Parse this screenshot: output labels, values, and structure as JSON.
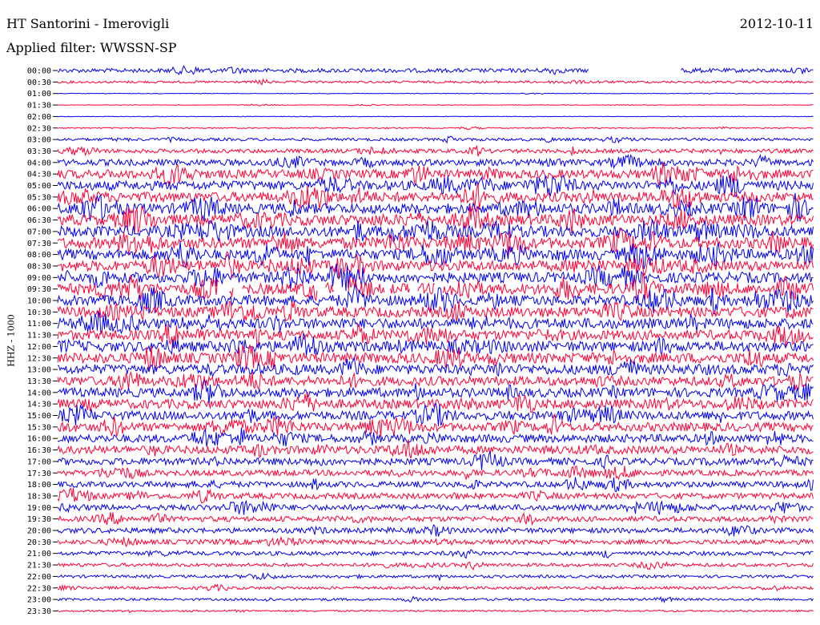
{
  "header": {
    "station": "HT Santorini - Imerovigli",
    "date": "2012-10-11",
    "filter_label": "Applied filter: WWSSN-SP",
    "channel_label": "HHZ - 1000"
  },
  "colors": {
    "even_trace": "#0000ee",
    "odd_trace": "#ff0033",
    "background": "#ffffff"
  },
  "chart_data": {
    "type": "line",
    "title": "HT Santorini - Imerovigli",
    "ylabel": "HHZ - 1000",
    "grid": false,
    "legend": "none",
    "row_labels": [
      "00:00",
      "00:30",
      "01:00",
      "01:30",
      "02:00",
      "02:30",
      "03:00",
      "03:30",
      "04:00",
      "04:30",
      "05:00",
      "05:30",
      "06:00",
      "06:30",
      "07:00",
      "07:30",
      "08:00",
      "08:30",
      "09:00",
      "09:30",
      "10:00",
      "10:30",
      "11:00",
      "11:30",
      "12:00",
      "12:30",
      "13:00",
      "13:30",
      "14:00",
      "14:30",
      "15:00",
      "15:30",
      "16:00",
      "16:30",
      "17:00",
      "17:30",
      "18:00",
      "18:30",
      "19:00",
      "19:30",
      "20:00",
      "20:30",
      "21:00",
      "21:30",
      "22:00",
      "22:30",
      "23:00",
      "23:30"
    ],
    "trace_amplitude_relative": [
      0.35,
      0.2,
      0.05,
      0.05,
      0.05,
      0.1,
      0.25,
      0.35,
      0.55,
      0.75,
      0.8,
      0.85,
      0.9,
      0.95,
      0.95,
      0.95,
      0.9,
      0.9,
      0.9,
      0.95,
      0.9,
      0.9,
      0.9,
      0.85,
      0.9,
      0.9,
      0.85,
      0.8,
      0.8,
      0.8,
      0.75,
      0.75,
      0.7,
      0.7,
      0.6,
      0.5,
      0.5,
      0.5,
      0.5,
      0.45,
      0.45,
      0.4,
      0.35,
      0.3,
      0.25,
      0.25,
      0.2,
      0.15
    ],
    "data_gaps": [
      {
        "row": "00:00",
        "from_minute": 21.1,
        "to_minute": 24.7
      },
      {
        "row": "09:30",
        "from_minute": 6.4,
        "to_minute": 6.8
      },
      {
        "row": "09:30",
        "from_minute": 7.0,
        "to_minute": 7.3
      },
      {
        "row": "09:30",
        "from_minute": 10.3,
        "to_minute": 10.6
      },
      {
        "row": "09:30",
        "from_minute": 11.0,
        "to_minute": 11.5
      },
      {
        "row": "09:30",
        "from_minute": 13.0,
        "to_minute": 13.2
      },
      {
        "row": "09:30",
        "from_minute": 14.0,
        "to_minute": 14.3
      },
      {
        "row": "09:30",
        "from_minute": 15.0,
        "to_minute": 15.3
      }
    ]
  }
}
